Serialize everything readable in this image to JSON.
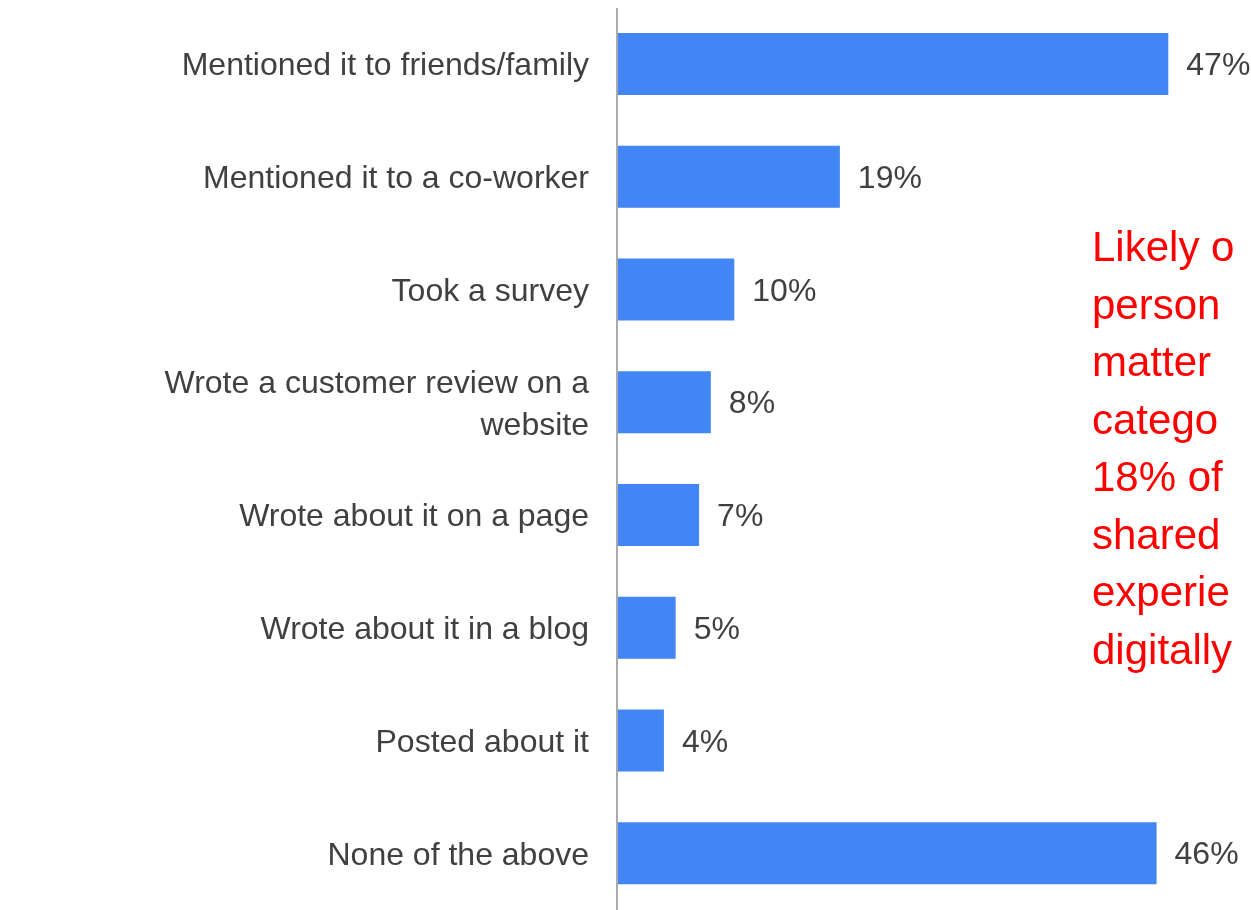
{
  "chart_data": {
    "type": "bar",
    "orientation": "horizontal",
    "categories": [
      "Mentioned it to friends/family",
      "Mentioned it to a co-worker",
      "Took a survey",
      "Wrote a customer review on a website",
      "Wrote about it on a page",
      "Wrote about it in a blog",
      "Posted about it",
      "None of the above"
    ],
    "values": [
      47,
      19,
      10,
      8,
      7,
      5,
      4,
      46
    ],
    "value_labels": [
      "47%",
      "19%",
      "10%",
      "8%",
      "7%",
      "5%",
      "4%",
      "46%"
    ],
    "color": "#4285f4",
    "annotations": [
      "Likely o\nperson\nmatter\ncatego\n18% of\nshared\nexperie\ndigitally"
    ],
    "grid": false,
    "legend": false
  }
}
